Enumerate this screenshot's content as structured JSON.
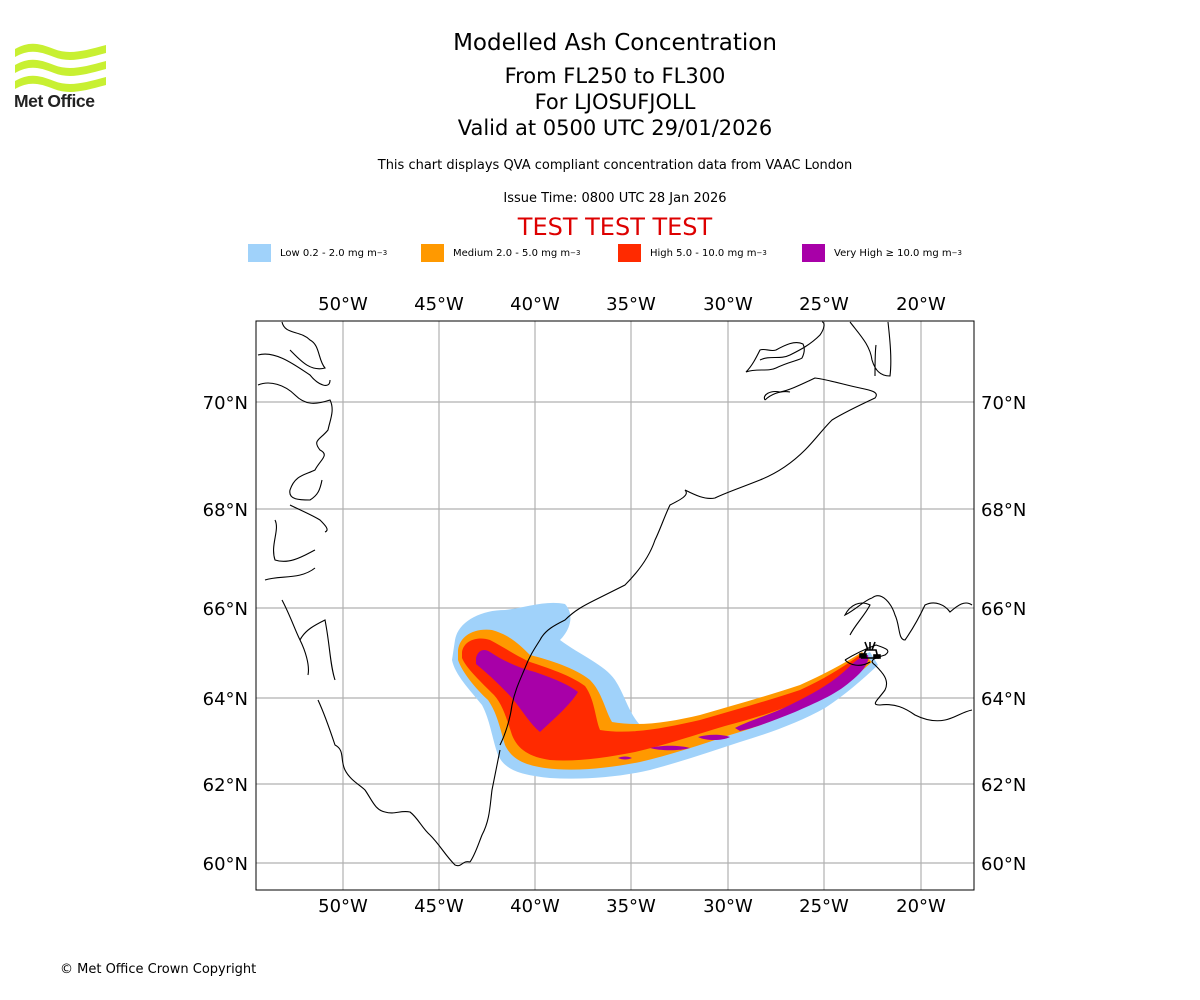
{
  "header": {
    "logo_text": "Met Office",
    "logo_color": "#c8f032",
    "title": "Modelled Ash Concentration",
    "flight_levels": "From FL250 to FL300",
    "volcano": "For LJOSUFJOLL",
    "valid_time": "Valid at 0500 UTC 29/01/2026",
    "description": "This chart displays QVA compliant concentration data from VAAC London",
    "issue_time": "Issue Time: 0800 UTC 28 Jan 2026",
    "test_banner": "TEST TEST TEST",
    "test_banner_color": "#dd0000"
  },
  "legend": [
    {
      "label": "Low 0.2 - 2.0 mg m",
      "sup": "−3",
      "color": "#a0d2fa"
    },
    {
      "label": "Medium 2.0 - 5.0 mg m",
      "sup": "−3",
      "color": "#ff9900"
    },
    {
      "label": "High 5.0 - 10.0 mg m",
      "sup": "−3",
      "color": "#ff2a00"
    },
    {
      "label": "Very High  ≥  10.0 mg m",
      "sup": "−3",
      "color": "#a800a8"
    }
  ],
  "map": {
    "lon_ticks": [
      "50°W",
      "45°W",
      "40°W",
      "35°W",
      "30°W",
      "25°W",
      "20°W"
    ],
    "lat_ticks": [
      "70°N",
      "68°N",
      "66°N",
      "64°N",
      "62°N",
      "60°N"
    ],
    "lon_values": [
      -50,
      -45,
      -40,
      -35,
      -30,
      -25,
      -20
    ],
    "lat_values": [
      70,
      68,
      66,
      64,
      62,
      60
    ],
    "extent": {
      "lon_min": -54.5,
      "lon_max": -17.3,
      "lat_min": 59.5,
      "lat_max": 71.5
    },
    "volcano_marker": "volcano-icon",
    "grid_color": "#b0b0b0",
    "coast_color": "#000000"
  },
  "footer": {
    "copyright": "© Met Office Crown Copyright"
  }
}
